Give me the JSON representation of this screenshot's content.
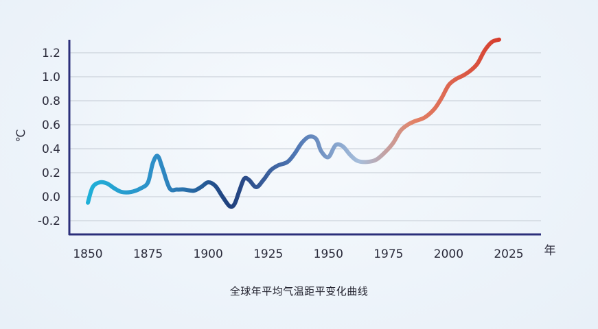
{
  "caption": "全球年平均气温距平变化曲线",
  "chart_data": {
    "type": "line",
    "title": "",
    "xlabel": "年",
    "ylabel": "℃",
    "xlim": [
      1850,
      2025
    ],
    "ylim": [
      -0.3,
      1.3
    ],
    "x_ticks": [
      1850,
      1875,
      1900,
      1925,
      1950,
      1975,
      2000,
      2025
    ],
    "y_ticks": [
      -0.2,
      0.0,
      0.2,
      0.4,
      0.6,
      0.8,
      1.0,
      1.2
    ],
    "y_tick_labels": [
      "-0.2",
      "0.0",
      "0.2",
      "0.4",
      "0.6",
      "0.8",
      "1.0",
      "1.2"
    ],
    "grid": "horizontal",
    "color_scale": [
      "#1fb0d8",
      "#1f3f7c",
      "#a6bedb",
      "#d5392a"
    ],
    "series": [
      {
        "x": [
          1850,
          1852,
          1855,
          1858,
          1861,
          1864,
          1868,
          1872,
          1875,
          1877,
          1879,
          1881,
          1884,
          1887,
          1890,
          1894,
          1897,
          1900,
          1903,
          1906,
          1909,
          1911,
          1913,
          1915,
          1917,
          1920,
          1923,
          1926,
          1929,
          1933,
          1936,
          1939,
          1942,
          1945,
          1947,
          1950,
          1953,
          1956,
          1959,
          1962,
          1966,
          1970,
          1974,
          1977,
          1980,
          1983,
          1986,
          1990,
          1994,
          1997,
          2000,
          2003,
          2006,
          2009,
          2012,
          2015,
          2018,
          2021
        ],
        "y": [
          -0.05,
          0.08,
          0.12,
          0.11,
          0.07,
          0.04,
          0.04,
          0.07,
          0.12,
          0.28,
          0.34,
          0.24,
          0.07,
          0.06,
          0.06,
          0.05,
          0.08,
          0.12,
          0.09,
          0.0,
          -0.08,
          -0.06,
          0.05,
          0.15,
          0.14,
          0.08,
          0.14,
          0.22,
          0.26,
          0.29,
          0.36,
          0.45,
          0.5,
          0.48,
          0.38,
          0.33,
          0.43,
          0.42,
          0.35,
          0.3,
          0.29,
          0.31,
          0.38,
          0.45,
          0.55,
          0.6,
          0.63,
          0.66,
          0.73,
          0.82,
          0.93,
          0.98,
          1.01,
          1.05,
          1.11,
          1.22,
          1.29,
          1.31
        ]
      }
    ]
  }
}
